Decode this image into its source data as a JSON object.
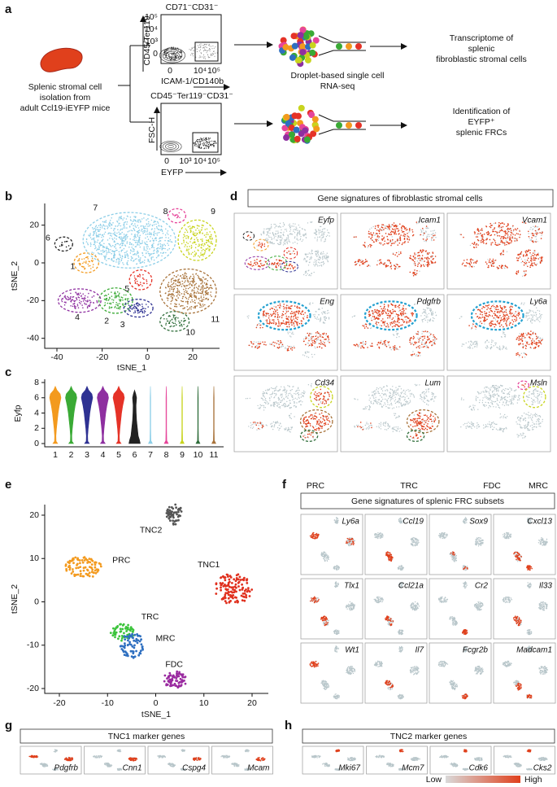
{
  "panel_a": {
    "letter": "a",
    "sample": [
      "Splenic stromal cell",
      "isolation from",
      "adult Ccl19-iEYFP mice"
    ],
    "gate_1": {
      "title": "CD71⁻CD31⁻",
      "y_label": "CD45/Ter119",
      "x_label": "ICAM-1/CD140b",
      "y_ticks": [
        "10⁵",
        "10⁴",
        "10³",
        "0"
      ],
      "x_ticks": [
        "0",
        "10⁴",
        "10⁵"
      ]
    },
    "gate_2": {
      "title": "CD45⁻Ter119⁻CD31⁻",
      "y_label": "FSC-H",
      "x_label": "EYFP",
      "x_ticks": [
        "0",
        "10³",
        "10⁴",
        "10⁵"
      ]
    },
    "method": [
      "Droplet-based single cell",
      "RNA-seq"
    ],
    "outcome_1": [
      "Transcriptome of",
      "splenic",
      "fibroblastic stromal cells"
    ],
    "outcome_2": [
      "Identification of",
      "EYFP⁺",
      "splenic FRCs"
    ]
  },
  "panel_b": {
    "letter": "b",
    "x_label": "tSNE_1",
    "y_label": "tSNE_2",
    "x_ticks": [
      "-40",
      "-20",
      "0",
      "20"
    ],
    "y_ticks": [
      "20",
      "0",
      "-20",
      "-40"
    ],
    "clusters": [
      "1",
      "2",
      "3",
      "4",
      "5",
      "6",
      "7",
      "8",
      "9",
      "10",
      "11"
    ]
  },
  "panel_c": {
    "letter": "c",
    "y_label": "Eyfp",
    "y_ticks": [
      "0",
      "2",
      "4",
      "6",
      "8"
    ],
    "categories": [
      "1",
      "2",
      "3",
      "4",
      "5",
      "6",
      "7",
      "8",
      "9",
      "10",
      "11"
    ]
  },
  "panel_d": {
    "letter": "d",
    "title": "Gene signatures of fibroblastic stromal cells",
    "genes": [
      "Eyfp",
      "Icam1",
      "Vcam1",
      "Eng",
      "Pdgfrb",
      "Ly6a",
      "Cd34",
      "Lum",
      "Msln"
    ]
  },
  "panel_e": {
    "letter": "e",
    "x_label": "tSNE_1",
    "y_label": "tSNE_2",
    "x_ticks": [
      "-20",
      "-10",
      "0",
      "10",
      "20"
    ],
    "y_ticks": [
      "20",
      "10",
      "0",
      "-10",
      "-20"
    ],
    "clusters": [
      "PRC",
      "TNC2",
      "TNC1",
      "TRC",
      "MRC",
      "FDC"
    ]
  },
  "panel_f": {
    "letter": "f",
    "subsets": [
      "PRC",
      "TRC",
      "FDC",
      "MRC"
    ],
    "title": "Gene signatures of splenic FRC subsets",
    "genes": [
      "Ly6a",
      "Ccl19",
      "Sox9",
      "Cxcl13",
      "Tlx1",
      "Ccl21a",
      "Cr2",
      "Il33",
      "Wt1",
      "Il7",
      "Fcgr2b",
      "Madcam1"
    ]
  },
  "panel_g": {
    "letter": "g",
    "title": "TNC1 marker genes",
    "genes": [
      "Pdgfrb",
      "Cnn1",
      "Cspg4",
      "Mcam"
    ]
  },
  "panel_h": {
    "letter": "h",
    "title": "TNC2 marker genes",
    "genes": [
      "Mki67",
      "Mcm7",
      "Cdk6",
      "Cks2"
    ]
  },
  "legend": {
    "low": "Low",
    "high": "High"
  }
}
